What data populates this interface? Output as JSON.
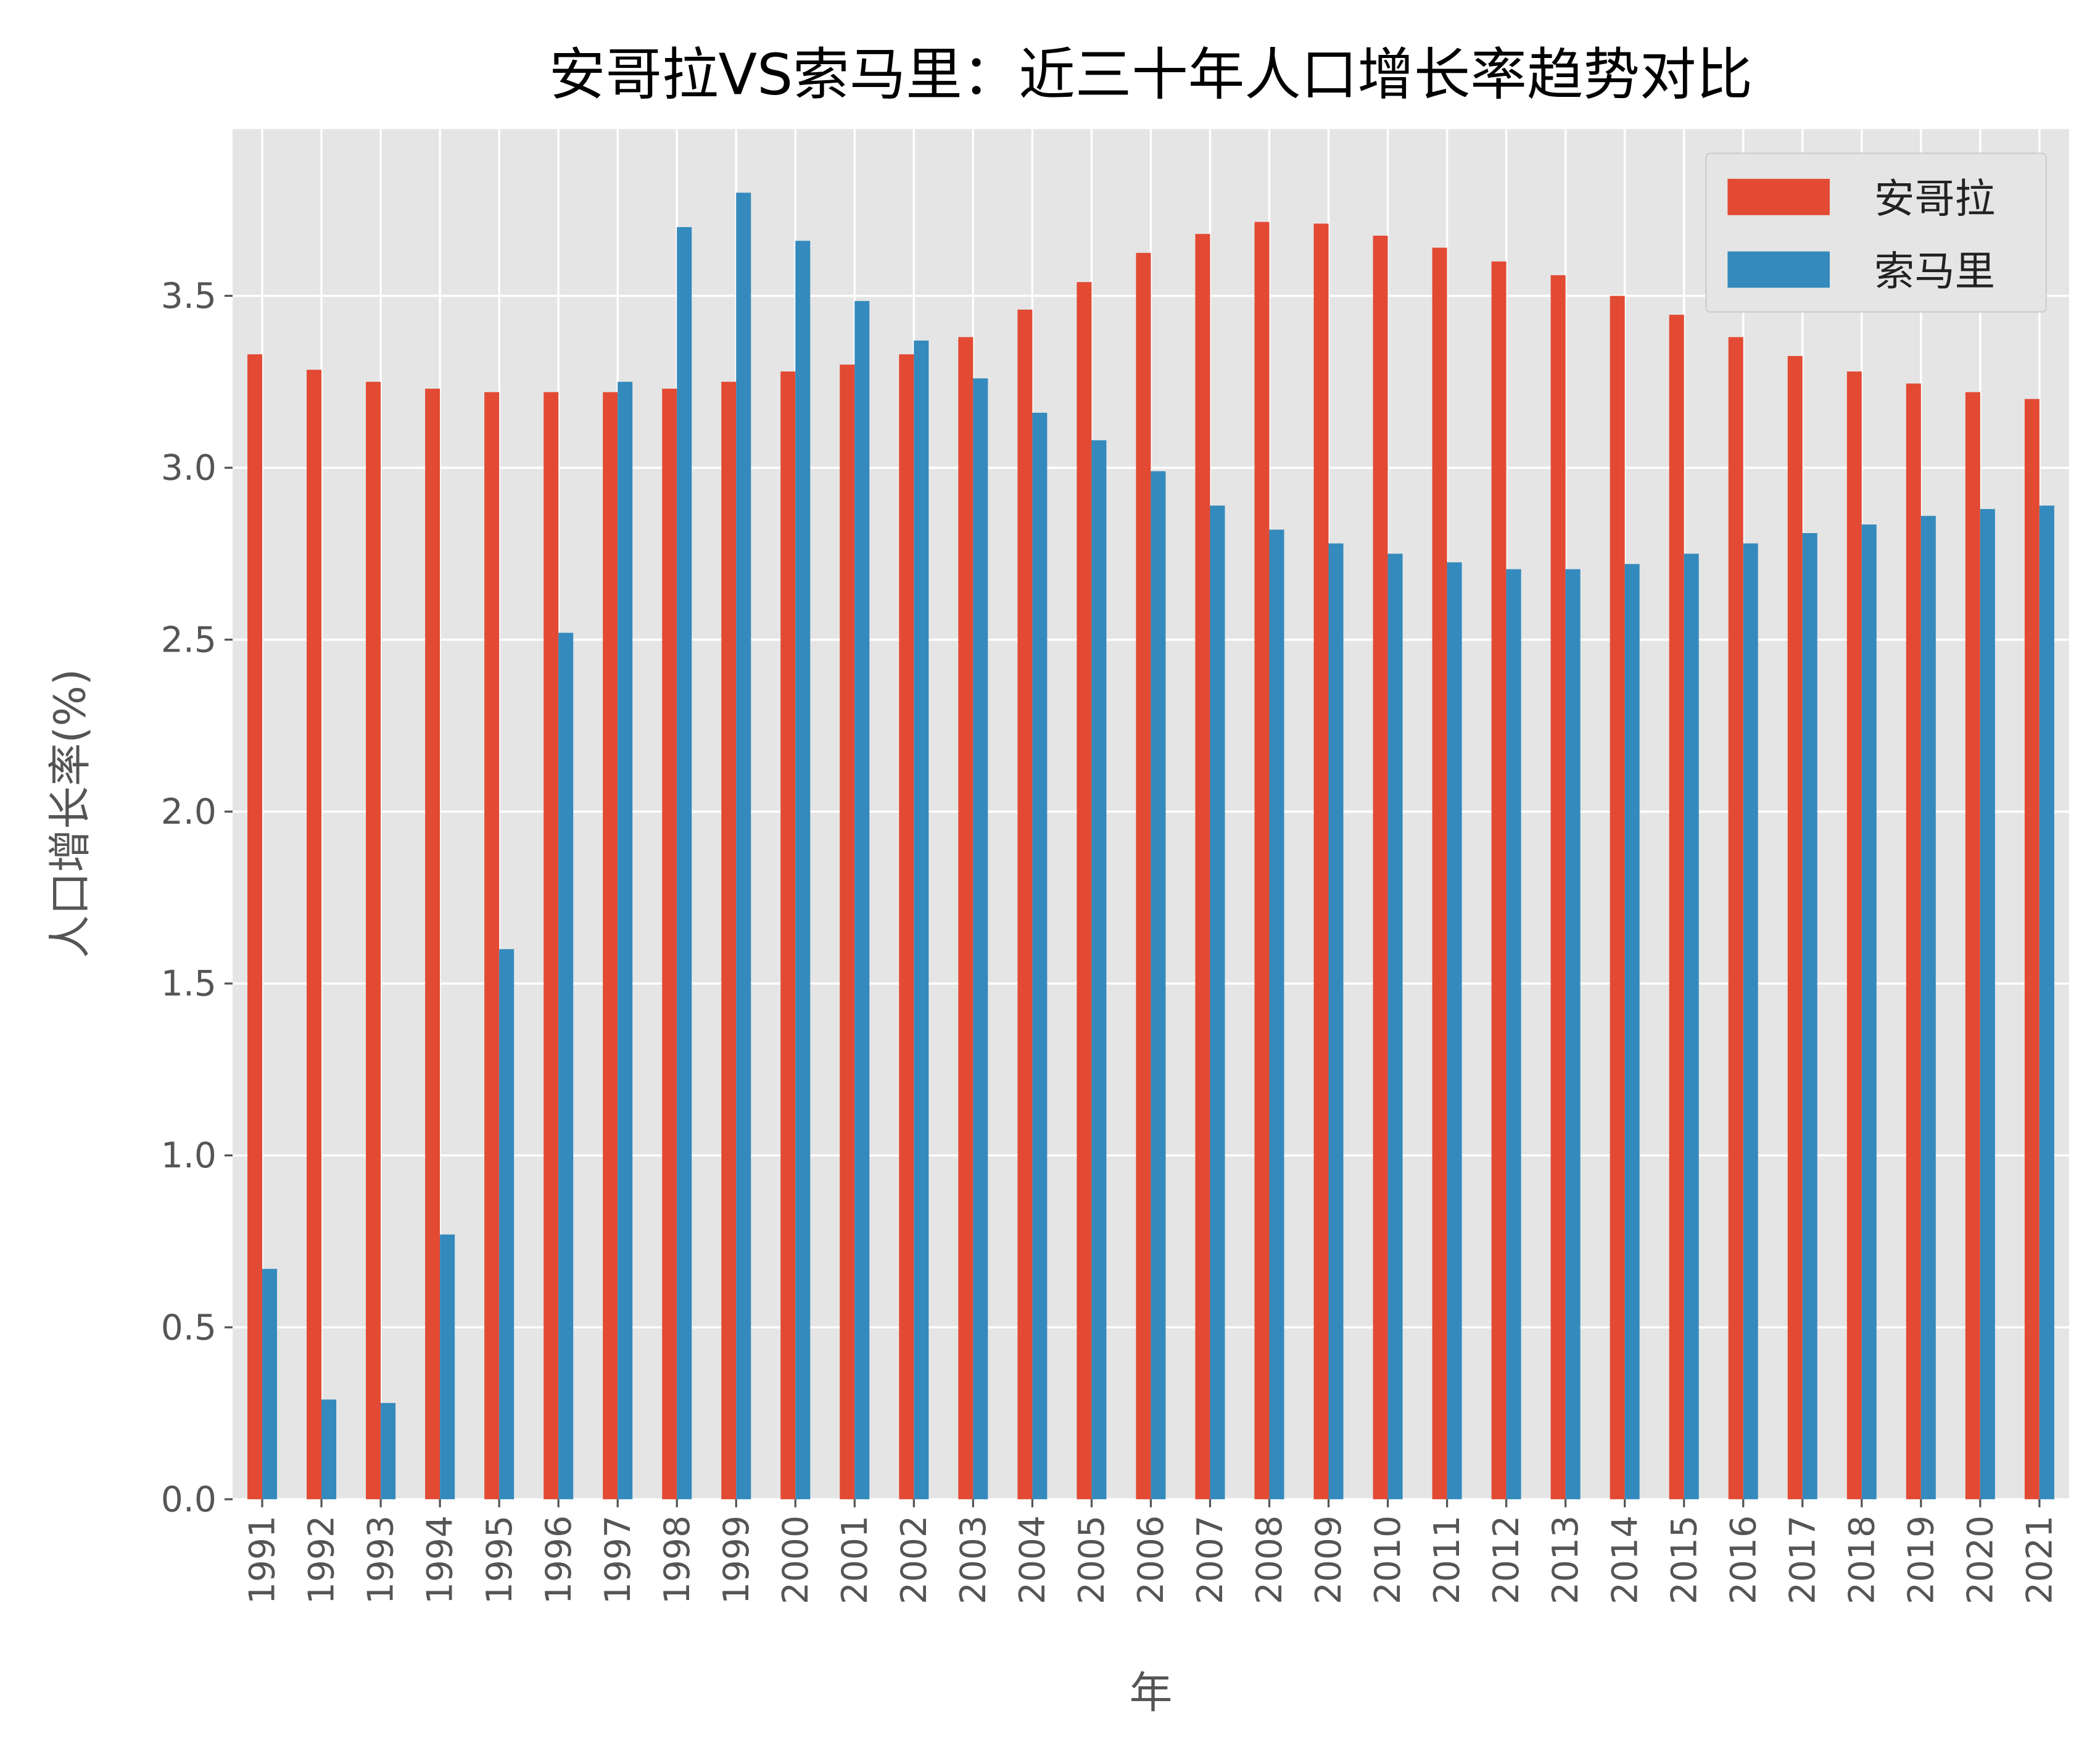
{
  "chart_data": {
    "type": "bar",
    "title": "安哥拉VS索马里：近三十年人口增长率趋势对比",
    "xlabel": "年",
    "ylabel": "人口增长率(%)",
    "ylim": [
      0,
      3.985
    ],
    "yticks": [
      "0.0",
      "0.5",
      "1.0",
      "1.5",
      "2.0",
      "2.5",
      "3.0",
      "3.5"
    ],
    "grid": true,
    "legend_position": "top-right",
    "categories": [
      "1991",
      "1992",
      "1993",
      "1994",
      "1995",
      "1996",
      "1997",
      "1998",
      "1999",
      "2000",
      "2001",
      "2002",
      "2003",
      "2004",
      "2005",
      "2006",
      "2007",
      "2008",
      "2009",
      "2010",
      "2011",
      "2012",
      "2013",
      "2014",
      "2015",
      "2016",
      "2017",
      "2018",
      "2019",
      "2020",
      "2021"
    ],
    "series": [
      {
        "name": "安哥拉",
        "color": "#E24A33",
        "values": [
          3.33,
          3.285,
          3.25,
          3.23,
          3.22,
          3.22,
          3.22,
          3.23,
          3.25,
          3.28,
          3.3,
          3.33,
          3.38,
          3.46,
          3.54,
          3.625,
          3.68,
          3.715,
          3.71,
          3.675,
          3.64,
          3.6,
          3.56,
          3.5,
          3.445,
          3.38,
          3.325,
          3.28,
          3.245,
          3.22,
          3.2
        ]
      },
      {
        "name": "索马里",
        "color": "#348ABD",
        "values": [
          0.67,
          0.29,
          0.28,
          0.77,
          1.6,
          2.52,
          3.25,
          3.7,
          3.8,
          3.66,
          3.485,
          3.37,
          3.26,
          3.16,
          3.08,
          2.99,
          2.89,
          2.82,
          2.78,
          2.75,
          2.725,
          2.705,
          2.705,
          2.72,
          2.75,
          2.78,
          2.81,
          2.835,
          2.86,
          2.88,
          2.89
        ]
      }
    ],
    "background_color": "#E5E5E5"
  }
}
